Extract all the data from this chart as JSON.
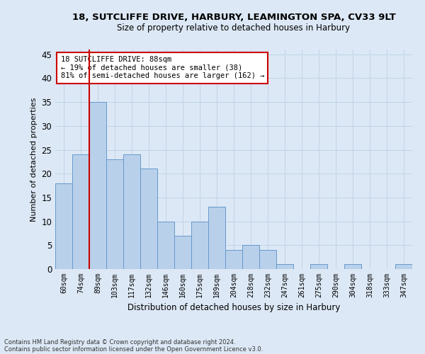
{
  "title": "18, SUTCLIFFE DRIVE, HARBURY, LEAMINGTON SPA, CV33 9LT",
  "subtitle": "Size of property relative to detached houses in Harbury",
  "xlabel": "Distribution of detached houses by size in Harbury",
  "ylabel": "Number of detached properties",
  "categories": [
    "60sqm",
    "74sqm",
    "89sqm",
    "103sqm",
    "117sqm",
    "132sqm",
    "146sqm",
    "160sqm",
    "175sqm",
    "189sqm",
    "204sqm",
    "218sqm",
    "232sqm",
    "247sqm",
    "261sqm",
    "275sqm",
    "290sqm",
    "304sqm",
    "318sqm",
    "333sqm",
    "347sqm"
  ],
  "values": [
    18,
    24,
    35,
    23,
    24,
    21,
    10,
    7,
    10,
    13,
    4,
    5,
    4,
    1,
    0,
    1,
    0,
    1,
    0,
    0,
    1
  ],
  "bar_color": "#b8d0ea",
  "bar_edge_color": "#6699cc",
  "vline_color": "#cc0000",
  "vline_x": 1.5,
  "annotation_line1": "18 SUTCLIFFE DRIVE: 88sqm",
  "annotation_line2": "← 19% of detached houses are smaller (38)",
  "annotation_line3": "81% of semi-detached houses are larger (162) →",
  "annotation_box_color": "#ffffff",
  "annotation_box_edge_color": "#cc0000",
  "ylim": [
    0,
    46
  ],
  "yticks": [
    0,
    5,
    10,
    15,
    20,
    25,
    30,
    35,
    40,
    45
  ],
  "grid_color": "#c0d4e8",
  "bg_color": "#dce8f5",
  "footnote1": "Contains HM Land Registry data © Crown copyright and database right 2024.",
  "footnote2": "Contains public sector information licensed under the Open Government Licence v3.0."
}
